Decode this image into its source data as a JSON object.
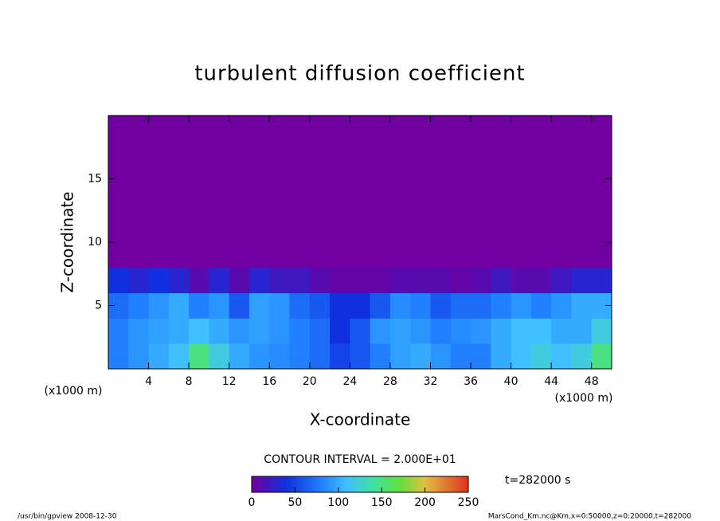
{
  "chart_data": {
    "type": "contour",
    "title": "turbulent diffusion coefficient",
    "x_label": "X-coordinate",
    "y_label": "Z-coordinate",
    "x_unit": "(x1000 m)",
    "xlim": [
      0,
      50
    ],
    "ylim": [
      0,
      20
    ],
    "xticks": [
      4,
      8,
      12,
      16,
      20,
      24,
      28,
      32,
      36,
      40,
      44,
      48
    ],
    "yticks": [
      5,
      10,
      15
    ],
    "x": [
      1,
      3,
      5,
      7,
      9,
      11,
      13,
      15,
      17,
      19,
      21,
      23,
      25,
      27,
      29,
      31,
      33,
      35,
      37,
      39,
      41,
      43,
      45,
      47,
      49
    ],
    "y": [
      1,
      3,
      5,
      7,
      9,
      11,
      13,
      15,
      17,
      19
    ],
    "z": [
      [
        80,
        90,
        100,
        110,
        150,
        120,
        100,
        90,
        85,
        80,
        70,
        50,
        60,
        80,
        95,
        100,
        90,
        80,
        80,
        100,
        110,
        120,
        110,
        120,
        150
      ],
      [
        80,
        90,
        95,
        100,
        110,
        100,
        90,
        95,
        90,
        80,
        70,
        40,
        60,
        90,
        95,
        90,
        80,
        85,
        90,
        100,
        110,
        110,
        100,
        100,
        120
      ],
      [
        70,
        80,
        90,
        100,
        80,
        90,
        60,
        95,
        90,
        70,
        60,
        40,
        40,
        60,
        85,
        80,
        60,
        70,
        70,
        80,
        90,
        80,
        90,
        100,
        100
      ],
      [
        40,
        30,
        40,
        30,
        10,
        30,
        10,
        30,
        20,
        20,
        10,
        5,
        5,
        5,
        10,
        10,
        10,
        5,
        10,
        20,
        10,
        10,
        20,
        30,
        30
      ],
      [
        0,
        0,
        0,
        0,
        0,
        0,
        0,
        0,
        0,
        0,
        0,
        0,
        0,
        0,
        0,
        0,
        0,
        0,
        0,
        0,
        0,
        0,
        0,
        0,
        0
      ],
      [
        0,
        0,
        0,
        0,
        0,
        0,
        0,
        0,
        0,
        0,
        0,
        0,
        0,
        0,
        0,
        0,
        0,
        0,
        0,
        0,
        0,
        0,
        0,
        0,
        0
      ],
      [
        0,
        0,
        0,
        0,
        0,
        0,
        0,
        0,
        0,
        0,
        0,
        0,
        0,
        0,
        0,
        0,
        0,
        0,
        0,
        0,
        0,
        0,
        0,
        0,
        0
      ],
      [
        0,
        0,
        0,
        0,
        0,
        0,
        0,
        0,
        0,
        0,
        0,
        0,
        0,
        0,
        0,
        0,
        0,
        0,
        0,
        0,
        0,
        0,
        0,
        0,
        0
      ],
      [
        0,
        0,
        0,
        0,
        0,
        0,
        0,
        0,
        0,
        0,
        0,
        0,
        0,
        0,
        0,
        0,
        0,
        0,
        0,
        0,
        0,
        0,
        0,
        0,
        0
      ],
      [
        0,
        0,
        0,
        0,
        0,
        0,
        0,
        0,
        0,
        0,
        0,
        0,
        0,
        0,
        0,
        0,
        0,
        0,
        0,
        0,
        0,
        0,
        0,
        0,
        0
      ]
    ],
    "clim": [
      0,
      250
    ],
    "cticks": [
      0,
      50,
      100,
      150,
      200,
      250
    ],
    "colorscale": [
      [
        0,
        "#7000a0"
      ],
      [
        40,
        "#1030e0"
      ],
      [
        80,
        "#2080ff"
      ],
      [
        110,
        "#40c0ff"
      ],
      [
        140,
        "#40e0a0"
      ],
      [
        170,
        "#60e040"
      ],
      [
        200,
        "#e0c040"
      ],
      [
        250,
        "#e03020"
      ]
    ],
    "contour_note": "CONTOUR INTERVAL = 2.000E+01",
    "time_label": "t=282000 s",
    "footer_left": "/usr/bin/gpview  2008-12-30",
    "footer_right": "MarsCond_Km.nc@Km,x=0:50000,z=0:20000,t=282000"
  }
}
